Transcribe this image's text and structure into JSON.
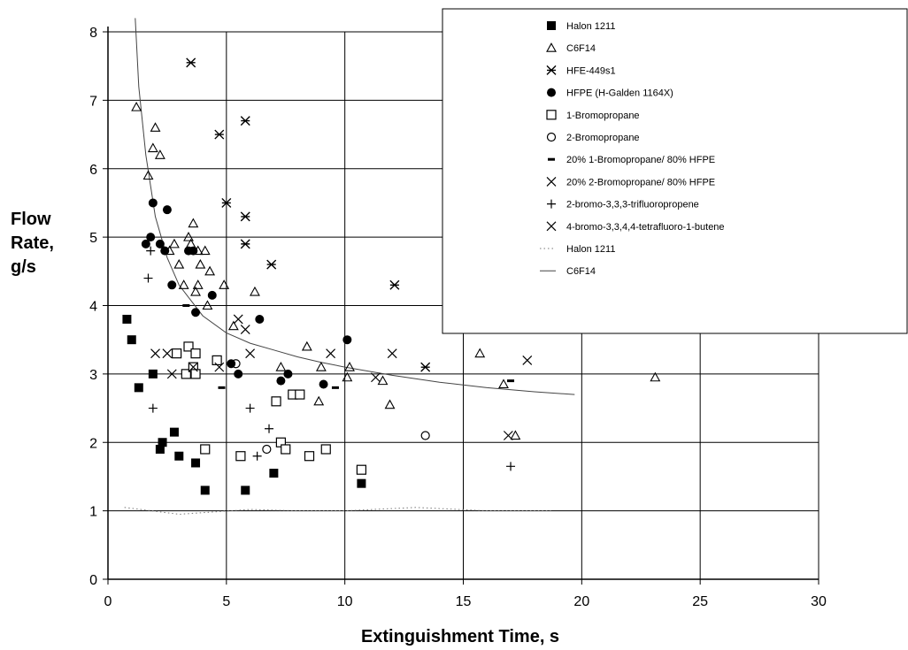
{
  "chart_data": {
    "type": "scatter",
    "title": "",
    "xlabel": "Extinguishment Time, s",
    "ylabel_lines": [
      "Flow",
      "Rate,",
      "g/s"
    ],
    "xlim": [
      0,
      30
    ],
    "ylim": [
      0,
      8
    ],
    "xticks": [
      0,
      5,
      10,
      15,
      20,
      25,
      30
    ],
    "yticks": [
      0,
      1,
      2,
      3,
      4,
      5,
      6,
      7,
      8
    ],
    "grid": true,
    "legend_position": "top-right",
    "series": [
      {
        "name": "Halon 1211",
        "marker": "filled-square",
        "points": [
          [
            0.8,
            3.8
          ],
          [
            1.0,
            3.5
          ],
          [
            1.3,
            2.8
          ],
          [
            1.9,
            3.0
          ],
          [
            2.2,
            1.9
          ],
          [
            2.3,
            2.0
          ],
          [
            2.8,
            2.15
          ],
          [
            3.0,
            1.8
          ],
          [
            3.7,
            1.7
          ],
          [
            4.1,
            1.3
          ],
          [
            5.8,
            1.3
          ],
          [
            7.0,
            1.55
          ],
          [
            10.7,
            1.4
          ]
        ]
      },
      {
        "name": "C6F14",
        "marker": "triangle",
        "points": [
          [
            1.2,
            6.9
          ],
          [
            1.7,
            5.9
          ],
          [
            1.9,
            6.3
          ],
          [
            2.0,
            6.6
          ],
          [
            2.2,
            6.2
          ],
          [
            2.6,
            4.8
          ],
          [
            2.8,
            4.9
          ],
          [
            3.0,
            4.6
          ],
          [
            3.2,
            4.3
          ],
          [
            3.4,
            5.0
          ],
          [
            3.5,
            4.9
          ],
          [
            3.6,
            5.2
          ],
          [
            3.7,
            4.2
          ],
          [
            3.8,
            4.3
          ],
          [
            3.8,
            4.8
          ],
          [
            3.9,
            4.6
          ],
          [
            4.1,
            4.8
          ],
          [
            4.2,
            4.0
          ],
          [
            4.3,
            4.5
          ],
          [
            4.9,
            4.3
          ],
          [
            5.3,
            3.7
          ],
          [
            6.2,
            4.2
          ],
          [
            7.3,
            3.1
          ],
          [
            8.4,
            3.4
          ],
          [
            8.9,
            2.6
          ],
          [
            9.0,
            3.1
          ],
          [
            10.1,
            2.95
          ],
          [
            10.2,
            3.1
          ],
          [
            11.6,
            2.9
          ],
          [
            11.9,
            2.55
          ],
          [
            15.7,
            3.3
          ],
          [
            16.7,
            2.85
          ],
          [
            17.2,
            2.1
          ],
          [
            23.1,
            2.95
          ]
        ]
      },
      {
        "name": "HFE-449s1",
        "marker": "star-x",
        "points": [
          [
            3.5,
            7.55
          ],
          [
            4.7,
            6.5
          ],
          [
            5.0,
            5.5
          ],
          [
            5.8,
            6.7
          ],
          [
            5.8,
            5.3
          ],
          [
            5.8,
            4.9
          ],
          [
            6.9,
            4.6
          ],
          [
            12.1,
            4.3
          ],
          [
            13.4,
            3.1
          ]
        ]
      },
      {
        "name": "HFPE (H-Galden 1164X)",
        "marker": "filled-circle",
        "points": [
          [
            1.6,
            4.9
          ],
          [
            1.8,
            5.0
          ],
          [
            1.9,
            5.5
          ],
          [
            2.2,
            4.9
          ],
          [
            2.4,
            4.8
          ],
          [
            2.5,
            5.4
          ],
          [
            2.7,
            4.3
          ],
          [
            3.4,
            4.8
          ],
          [
            3.6,
            4.8
          ],
          [
            3.7,
            3.9
          ],
          [
            4.4,
            4.15
          ],
          [
            5.2,
            3.15
          ],
          [
            5.5,
            3.0
          ],
          [
            6.4,
            3.8
          ],
          [
            7.3,
            2.9
          ],
          [
            7.6,
            3.0
          ],
          [
            9.1,
            2.85
          ],
          [
            10.1,
            3.5
          ]
        ]
      },
      {
        "name": "1-Bromopropane",
        "marker": "open-square",
        "points": [
          [
            2.9,
            3.3
          ],
          [
            3.3,
            3.0
          ],
          [
            3.4,
            3.4
          ],
          [
            3.6,
            3.1
          ],
          [
            3.7,
            3.3
          ],
          [
            3.7,
            3.0
          ],
          [
            4.1,
            1.9
          ],
          [
            4.6,
            3.2
          ],
          [
            5.6,
            1.8
          ],
          [
            7.1,
            2.6
          ],
          [
            7.3,
            2.0
          ],
          [
            7.5,
            1.9
          ],
          [
            7.8,
            2.7
          ],
          [
            8.1,
            2.7
          ],
          [
            8.5,
            1.8
          ],
          [
            9.2,
            1.9
          ],
          [
            10.7,
            1.6
          ]
        ]
      },
      {
        "name": "2-Bromopropane",
        "marker": "open-circle",
        "points": [
          [
            5.4,
            3.15
          ],
          [
            6.7,
            1.9
          ],
          [
            13.4,
            2.1
          ]
        ]
      },
      {
        "name": "20% 1-Bromopropane/ 80% HFPE",
        "marker": "dash",
        "points": [
          [
            3.3,
            4.0
          ],
          [
            4.8,
            2.8
          ],
          [
            9.6,
            2.8
          ],
          [
            17.0,
            2.9
          ]
        ]
      },
      {
        "name": "20% 2-Bromopropane/ 80% HFPE",
        "marker": "x",
        "points": [
          [
            2.0,
            3.3
          ],
          [
            2.5,
            3.3
          ],
          [
            2.7,
            3.0
          ],
          [
            5.5,
            3.8
          ],
          [
            5.8,
            3.65
          ],
          [
            6.0,
            3.3
          ],
          [
            9.4,
            3.3
          ],
          [
            11.3,
            2.95
          ],
          [
            12.0,
            3.3
          ],
          [
            17.7,
            3.2
          ]
        ]
      },
      {
        "name": "2-bromo-3,3,3-trifluoropropene",
        "marker": "plus",
        "points": [
          [
            1.7,
            4.4
          ],
          [
            1.8,
            4.8
          ],
          [
            1.9,
            2.5
          ],
          [
            6.0,
            2.5
          ],
          [
            6.3,
            1.8
          ],
          [
            6.8,
            2.2
          ],
          [
            17.0,
            1.65
          ]
        ]
      },
      {
        "name": "4-bromo-3,3,4,4-tetrafluoro-1-butene",
        "marker": "x",
        "points": [
          [
            3.6,
            3.1
          ],
          [
            4.7,
            3.1
          ],
          [
            16.9,
            2.1
          ]
        ]
      },
      {
        "name": "Halon 1211",
        "marker": "none",
        "line": "dotted",
        "points": [
          [
            0.7,
            1.05
          ],
          [
            3.0,
            0.95
          ],
          [
            6.0,
            1.02
          ],
          [
            8.0,
            1.0
          ],
          [
            10.0,
            1.0
          ],
          [
            13.0,
            1.05
          ],
          [
            16.0,
            1.0
          ],
          [
            18.7,
            1.0
          ]
        ]
      },
      {
        "name": "C6F14",
        "marker": "none",
        "line": "solid",
        "points": [
          [
            1.15,
            8.2
          ],
          [
            1.3,
            7.2
          ],
          [
            1.6,
            6.2
          ],
          [
            2.0,
            5.3
          ],
          [
            2.5,
            4.7
          ],
          [
            3.0,
            4.3
          ],
          [
            4.0,
            3.85
          ],
          [
            5.0,
            3.6
          ],
          [
            6.0,
            3.45
          ],
          [
            7.0,
            3.35
          ],
          [
            8.0,
            3.25
          ],
          [
            9.0,
            3.17
          ],
          [
            10.0,
            3.1
          ],
          [
            12.0,
            2.98
          ],
          [
            14.0,
            2.88
          ],
          [
            16.0,
            2.8
          ],
          [
            18.0,
            2.74
          ],
          [
            19.7,
            2.7
          ]
        ]
      }
    ]
  }
}
